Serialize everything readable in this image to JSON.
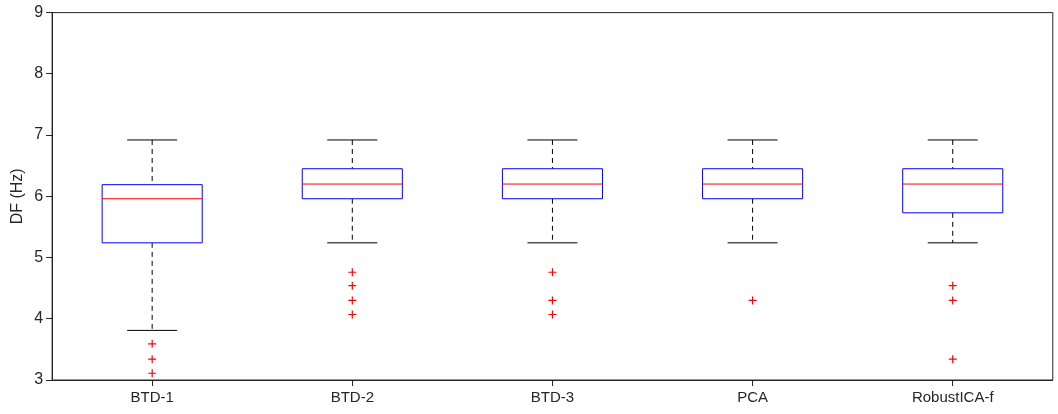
{
  "chart_data": {
    "type": "box",
    "ylabel": "DF (Hz)",
    "categories": [
      "BTD-1",
      "BTD-2",
      "BTD-3",
      "PCA",
      "RobustICA-f"
    ],
    "ylim": [
      3,
      9
    ],
    "yticks": [
      3,
      4,
      5,
      6,
      7,
      8,
      9
    ],
    "color": "#0000ff",
    "boxes": [
      {
        "low": 3.81,
        "q1": 5.24,
        "median": 5.96,
        "q3": 6.19,
        "high": 6.92,
        "outliers": [
          3.59,
          3.34,
          3.11
        ]
      },
      {
        "low": 5.24,
        "q1": 5.96,
        "median": 6.2,
        "q3": 6.45,
        "high": 6.92,
        "outliers": [
          4.76,
          4.54,
          4.3,
          4.07
        ]
      },
      {
        "low": 5.24,
        "q1": 5.96,
        "median": 6.2,
        "q3": 6.45,
        "high": 6.92,
        "outliers": [
          4.76,
          4.3,
          4.07
        ]
      },
      {
        "low": 5.24,
        "q1": 5.96,
        "median": 6.2,
        "q3": 6.45,
        "high": 6.92,
        "outliers": [
          4.3
        ]
      },
      {
        "low": 5.24,
        "q1": 5.73,
        "median": 6.2,
        "q3": 6.45,
        "high": 6.92,
        "outliers": [
          4.54,
          4.3,
          3.34
        ]
      }
    ]
  }
}
